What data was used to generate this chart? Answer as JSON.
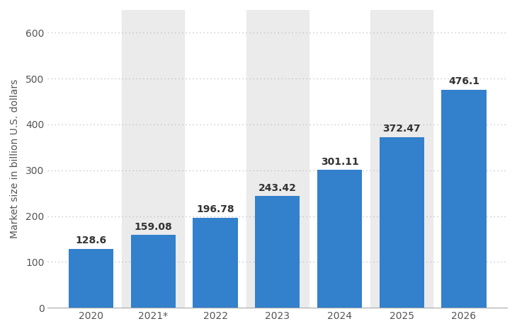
{
  "categories": [
    "2020",
    "2021*",
    "2022",
    "2023",
    "2024",
    "2025",
    "2026"
  ],
  "values": [
    128.6,
    159.08,
    196.78,
    243.42,
    301.11,
    372.47,
    476.1
  ],
  "bar_color": "#3380CC",
  "bar_alt_color": "#ebebeb",
  "ylabel": "Market size in billion U.S. dollars",
  "ylim": [
    0,
    650
  ],
  "yticks": [
    0,
    100,
    200,
    300,
    400,
    500,
    600
  ],
  "grid_color": "#bbbbbb",
  "background_color": "#ffffff",
  "plot_bg_color": "#ffffff",
  "label_fontsize": 10,
  "axis_fontsize": 10,
  "bar_width": 0.72
}
